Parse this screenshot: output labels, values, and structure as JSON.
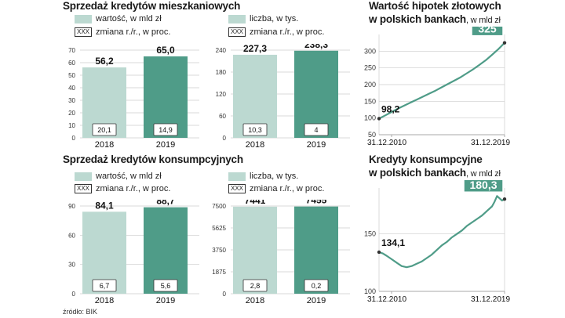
{
  "colors": {
    "bar_2018": "#bcd9d1",
    "bar_2019": "#4f9c88",
    "line": "#4f9c88",
    "badge": "#4f9c88",
    "grid": "#cccccc"
  },
  "sections": {
    "housing_title": "Sprzedaż kredytów mieszkaniowych",
    "consumer_title": "Sprzedaż kredytów konsumpcyjnych"
  },
  "legends": {
    "value": "wartość, w mld zł",
    "count": "liczba, w tys.",
    "change_box": "XXX",
    "change": "zmiana r./r., w proc."
  },
  "right_titles": {
    "mortgage_line1": "Wartość hipotek złotowych",
    "mortgage_line2": "w polskich bankach",
    "mortgage_unit": ", w mld zł",
    "consumer_line1": "Kredyty konsumpcyjne",
    "consumer_line2": "w polskich bankach",
    "consumer_unit": ", w mld zł"
  },
  "source": "źródło: BIK",
  "chart_data": [
    {
      "id": "housing-value",
      "type": "bar",
      "categories": [
        "2018",
        "2019"
      ],
      "values": [
        56.2,
        65.0
      ],
      "value_labels": [
        "56,2",
        "65,0"
      ],
      "changes": [
        "20,1",
        "14,9"
      ],
      "yticks": [
        0,
        10,
        20,
        30,
        40,
        50,
        60,
        70
      ],
      "ylim": [
        0,
        70
      ]
    },
    {
      "id": "housing-count",
      "type": "bar",
      "categories": [
        "2018",
        "2019"
      ],
      "values": [
        227.3,
        238.3
      ],
      "value_labels": [
        "227,3",
        "238,3"
      ],
      "changes": [
        "10,3",
        "4"
      ],
      "yticks": [
        0,
        60,
        120,
        180,
        240
      ],
      "ylim": [
        0,
        240
      ]
    },
    {
      "id": "consumer-value",
      "type": "bar",
      "categories": [
        "2018",
        "2019"
      ],
      "values": [
        84.1,
        88.7
      ],
      "value_labels": [
        "84,1",
        "88,7"
      ],
      "changes": [
        "6,7",
        "5,6"
      ],
      "yticks": [
        0,
        30,
        60,
        90
      ],
      "ylim": [
        0,
        90
      ]
    },
    {
      "id": "consumer-count",
      "type": "bar",
      "categories": [
        "2018",
        "2019"
      ],
      "values": [
        7441,
        7455
      ],
      "value_labels": [
        "7441",
        "7455"
      ],
      "changes": [
        "2,8",
        "0,2"
      ],
      "yticks": [
        0,
        1875,
        3750,
        5625,
        7500
      ],
      "ylim": [
        0,
        7500
      ]
    },
    {
      "id": "mortgage-line",
      "type": "line",
      "x": [
        2010.0,
        2010.5,
        2011.0,
        2011.5,
        2012.0,
        2012.5,
        2013.0,
        2013.5,
        2014.0,
        2014.5,
        2015.0,
        2015.5,
        2016.0,
        2016.5,
        2017.0,
        2017.5,
        2018.0,
        2018.5,
        2019.0,
        2019.5,
        2020.0
      ],
      "y": [
        98.2,
        108,
        118,
        128,
        137,
        146,
        155,
        164,
        173,
        182,
        192,
        202,
        212,
        222,
        234,
        246,
        259,
        273,
        289,
        306,
        325
      ],
      "start_label": "98,2",
      "end_label": "325",
      "xtick_labels": [
        "31.12.2010",
        "31.12.2019"
      ],
      "yticks": [
        50,
        100,
        150,
        200,
        250,
        300
      ],
      "ylim": [
        50,
        350
      ]
    },
    {
      "id": "consumer-line",
      "type": "line",
      "x": [
        2010.0,
        2010.3,
        2010.6,
        2011.0,
        2011.4,
        2011.8,
        2012.2,
        2012.6,
        2013.0,
        2013.4,
        2013.8,
        2014.2,
        2014.6,
        2015.0,
        2015.4,
        2015.8,
        2016.2,
        2016.6,
        2017.0,
        2017.4,
        2017.8,
        2018.2,
        2018.6,
        2019.0,
        2019.2,
        2019.4,
        2019.6,
        2019.8,
        2020.0
      ],
      "y": [
        134.1,
        133,
        131,
        128,
        125,
        122,
        121,
        122,
        124,
        126,
        129,
        132,
        136,
        140,
        143,
        147,
        150,
        153,
        157,
        160,
        163,
        166,
        170,
        174,
        178,
        183,
        181,
        179,
        180.3
      ],
      "start_label": "134,1",
      "end_label": "180,3",
      "xtick_labels": [
        "31.12.2010",
        "31.12.2019"
      ],
      "yticks": [
        100,
        150
      ],
      "ylim": [
        100,
        190
      ]
    }
  ]
}
